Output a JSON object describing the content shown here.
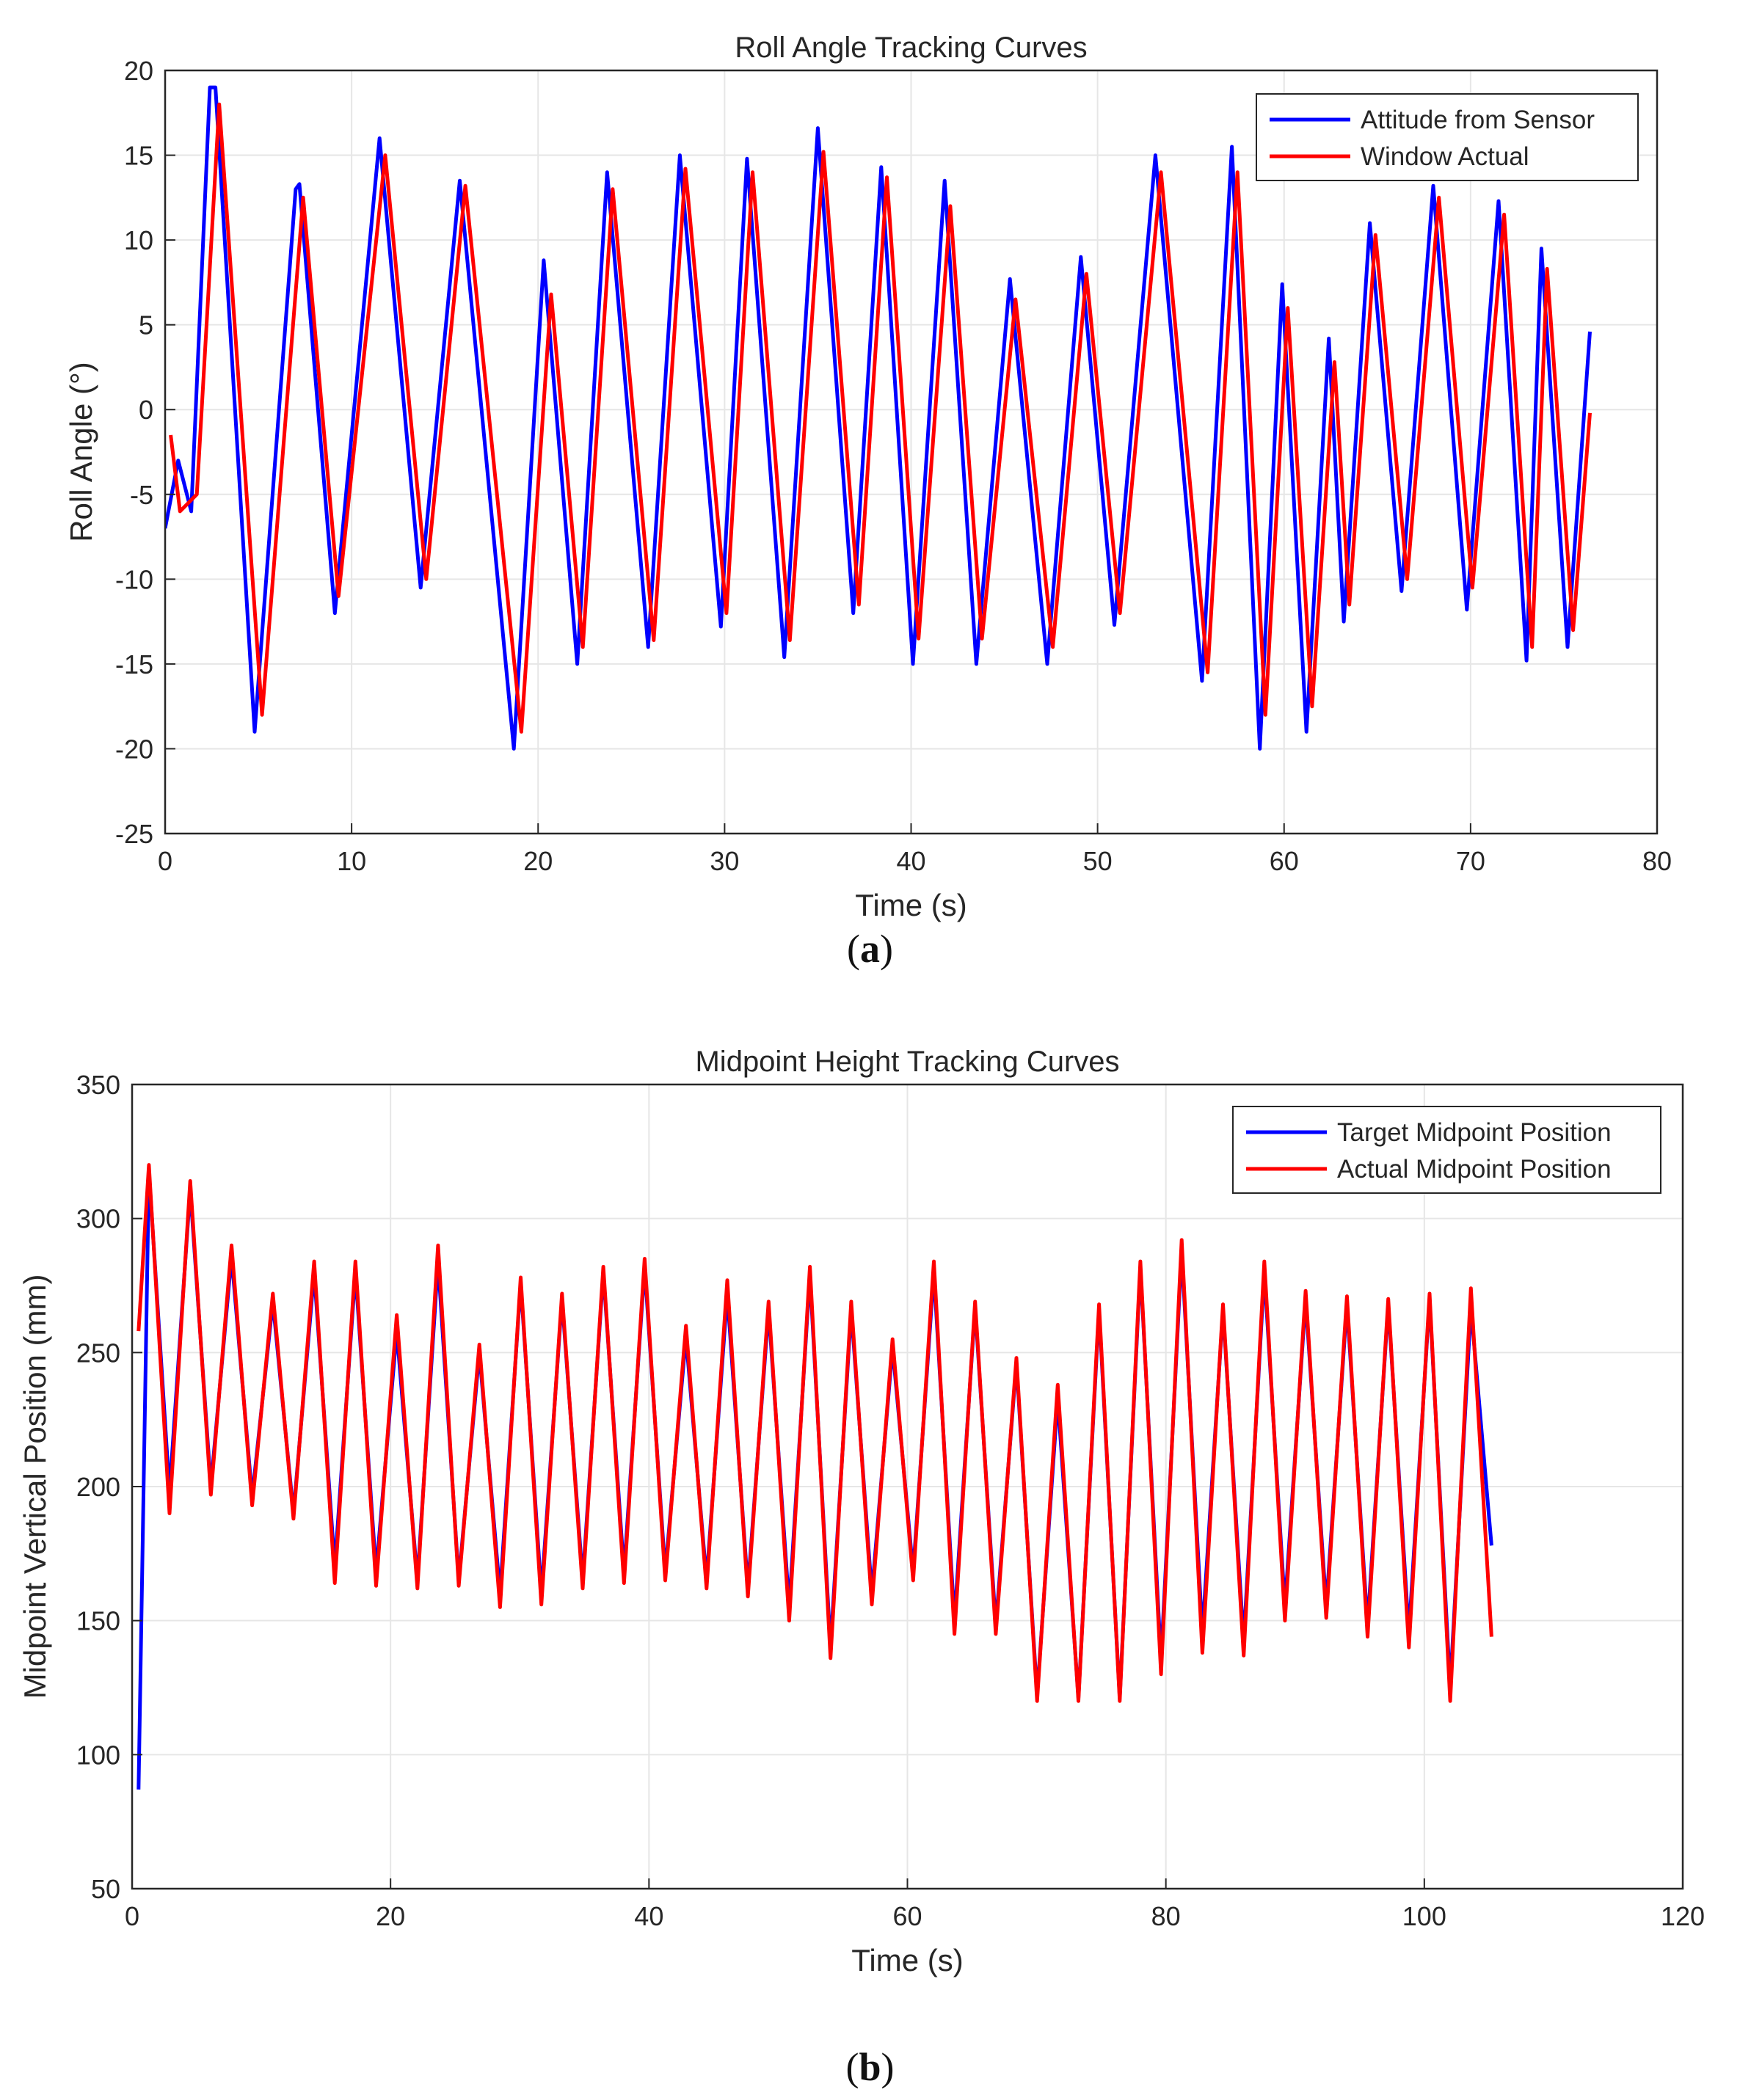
{
  "chart_data": [
    {
      "type": "line",
      "caption_letter": "a",
      "title": "Roll Angle Tracking Curves",
      "xlabel": "Time (s)",
      "ylabel": "Roll Angle (°)",
      "xlim": [
        0,
        80
      ],
      "ylim": [
        -25,
        20
      ],
      "xticks": [
        0,
        10,
        20,
        30,
        40,
        50,
        60,
        70,
        80
      ],
      "yticks": [
        -25,
        -20,
        -15,
        -10,
        -5,
        0,
        5,
        10,
        15,
        20
      ],
      "grid": true,
      "legend_position": "top-right",
      "series": [
        {
          "name": "Attitude from Sensor",
          "color": "#0000ff",
          "x": [
            0,
            0.7,
            1.4,
            2.4,
            2.7,
            4.8,
            7.0,
            7.2,
            9.1,
            11.5,
            13.7,
            15.8,
            18.7,
            20.3,
            22.1,
            23.7,
            25.9,
            27.6,
            29.8,
            31.2,
            33.2,
            35.0,
            36.9,
            38.4,
            40.1,
            41.8,
            43.5,
            45.3,
            47.3,
            49.1,
            50.9,
            53.1,
            55.6,
            57.2,
            58.7,
            59.9,
            61.2,
            62.4,
            63.2,
            64.6,
            66.3,
            68.0,
            69.8,
            71.5,
            73.0,
            73.8,
            75.2,
            76.4
          ],
          "y": [
            -7,
            -3,
            -6,
            19,
            19,
            -19,
            13,
            13.3,
            -12,
            16,
            -10.5,
            13.5,
            -20,
            8.8,
            -15,
            14,
            -14,
            15,
            -12.8,
            14.8,
            -14.6,
            16.6,
            -12,
            14.3,
            -15,
            13.5,
            -15,
            7.7,
            -15,
            9,
            -12.7,
            15,
            -16,
            15.5,
            -20,
            7.4,
            -19,
            4.2,
            -12.5,
            11,
            -10.7,
            13.2,
            -11.8,
            12.3,
            -14.8,
            9.5,
            -14,
            4.6
          ]
        },
        {
          "name": "Window Actual",
          "color": "#ff0000",
          "x": [
            0.3,
            0.8,
            1.7,
            2.9,
            5.2,
            7.4,
            9.3,
            11.8,
            14.0,
            16.1,
            19.1,
            20.7,
            22.4,
            24.0,
            26.2,
            27.9,
            30.1,
            31.5,
            33.5,
            35.3,
            37.2,
            38.7,
            40.4,
            42.1,
            43.8,
            45.6,
            47.6,
            49.4,
            51.2,
            53.4,
            55.9,
            57.5,
            59.0,
            60.2,
            61.5,
            62.7,
            63.5,
            64.9,
            66.6,
            68.3,
            70.1,
            71.8,
            73.3,
            74.1,
            75.5,
            76.4
          ],
          "y": [
            -1.5,
            -6,
            -5,
            18,
            -18,
            12.5,
            -11,
            15,
            -10,
            13.2,
            -19,
            6.8,
            -14,
            13,
            -13.6,
            14.2,
            -12,
            14,
            -13.6,
            15.2,
            -11.5,
            13.7,
            -13.5,
            12,
            -13.5,
            6.5,
            -14,
            8,
            -12,
            14,
            -15.5,
            14,
            -18,
            6,
            -17.5,
            2.8,
            -11.5,
            10.3,
            -10,
            12.5,
            -10.5,
            11.5,
            -14,
            8.3,
            -13,
            -0.2
          ]
        }
      ]
    },
    {
      "type": "line",
      "caption_letter": "b",
      "title": "Midpoint Height Tracking Curves",
      "xlabel": "Time (s)",
      "ylabel": "Midpoint Vertical Position (mm)",
      "xlim": [
        0,
        120
      ],
      "ylim": [
        50,
        350
      ],
      "xticks": [
        0,
        20,
        40,
        60,
        80,
        100,
        120
      ],
      "yticks": [
        50,
        100,
        150,
        200,
        250,
        300,
        350
      ],
      "grid": true,
      "legend_position": "top-right",
      "series": [
        {
          "name": "Target Midpoint Position",
          "color": "#0000ff",
          "peaks": [
            318,
            311,
            286,
            269,
            280,
            280,
            258,
            284,
            250,
            276,
            270,
            280,
            282,
            256,
            272,
            266,
            279,
            266,
            252,
            280,
            267,
            246,
            233,
            266,
            282,
            288,
            266,
            280,
            270,
            268,
            268,
            270,
            267
          ],
          "troughs": [
            198,
            200,
            196,
            190,
            170,
            168,
            165,
            165,
            160,
            160,
            165,
            168,
            168,
            165,
            162,
            155,
            140,
            160,
            168,
            150,
            148,
            122,
            121,
            121,
            135,
            145,
            142,
            155,
            155,
            148,
            145,
            125,
            178
          ]
        },
        {
          "name": "Actual Midpoint Position",
          "color": "#ff0000",
          "peaks": [
            320,
            314,
            290,
            272,
            284,
            284,
            264,
            290,
            253,
            278,
            272,
            282,
            285,
            260,
            277,
            269,
            282,
            269,
            255,
            284,
            269,
            248,
            238,
            268,
            284,
            292,
            268,
            284,
            273,
            271,
            270,
            272,
            274
          ],
          "troughs": [
            190,
            197,
            193,
            188,
            164,
            163,
            162,
            163,
            155,
            156,
            162,
            164,
            165,
            162,
            159,
            150,
            136,
            156,
            165,
            145,
            145,
            120,
            120,
            120,
            130,
            138,
            137,
            150,
            151,
            144,
            140,
            120,
            144
          ]
        }
      ]
    }
  ]
}
